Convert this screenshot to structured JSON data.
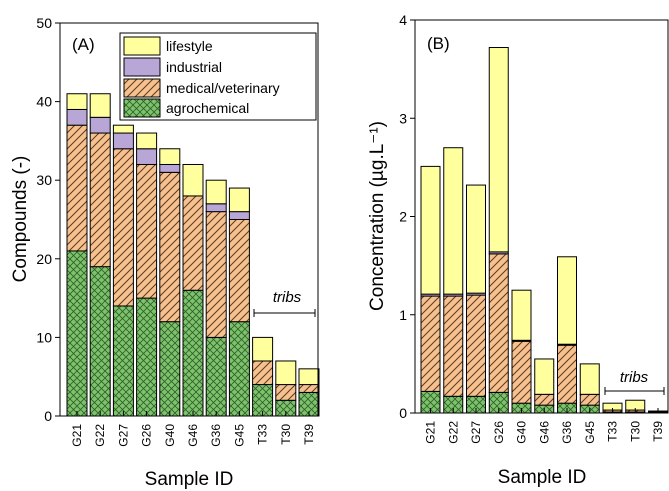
{
  "legend": {
    "items": [
      {
        "label": "lifestyle",
        "key": "lifestyle"
      },
      {
        "label": "industrial",
        "key": "industrial"
      },
      {
        "label": "medical/veterinary",
        "key": "medical"
      },
      {
        "label": "agrochemical",
        "key": "agro"
      }
    ]
  },
  "chart_data": [
    {
      "type": "bar",
      "stacked": true,
      "panel_label": "(A)",
      "xlabel": "Sample ID",
      "ylabel": "Compounds (-)",
      "ylim": [
        0,
        50
      ],
      "yticks": [
        0,
        10,
        20,
        30,
        40,
        50
      ],
      "categories": [
        "G21",
        "G22",
        "G27",
        "G26",
        "G40",
        "G46",
        "G36",
        "G45",
        "T33",
        "T30",
        "T39"
      ],
      "series": [
        {
          "name": "agrochemical",
          "key": "agro",
          "values": [
            21,
            19,
            14,
            15,
            12,
            16,
            10,
            12,
            4,
            2,
            3
          ]
        },
        {
          "name": "medical/veterinary",
          "key": "medical",
          "values": [
            16,
            17,
            20,
            17,
            19,
            12,
            16,
            13,
            3,
            2,
            1
          ]
        },
        {
          "name": "industrial",
          "key": "industrial",
          "values": [
            2,
            2,
            2,
            2,
            1,
            0,
            1,
            1,
            0,
            0,
            0
          ]
        },
        {
          "name": "lifestyle",
          "key": "lifestyle",
          "values": [
            2,
            3,
            1,
            2,
            2,
            4,
            3,
            3,
            3,
            3,
            2
          ]
        }
      ],
      "annotation": {
        "text": "tribs",
        "from_category": "T33",
        "to_category": "T39",
        "y": 14.2
      }
    },
    {
      "type": "bar",
      "stacked": true,
      "panel_label": "(B)",
      "xlabel": "Sample ID",
      "ylabel": "Concentration (µg.L⁻¹)",
      "ylim": [
        0,
        4
      ],
      "yticks": [
        0,
        1,
        2,
        3,
        4
      ],
      "categories": [
        "G21",
        "G22",
        "G27",
        "G26",
        "G40",
        "G46",
        "G36",
        "G45",
        "T33",
        "T30",
        "T39"
      ],
      "series": [
        {
          "name": "agrochemical",
          "key": "agro",
          "values": [
            0.22,
            0.17,
            0.17,
            0.21,
            0.1,
            0.08,
            0.1,
            0.08,
            0.01,
            0.01,
            0.005
          ]
        },
        {
          "name": "medical/veterinary",
          "key": "medical",
          "values": [
            0.97,
            1.02,
            1.03,
            1.41,
            0.63,
            0.11,
            0.59,
            0.11,
            0.02,
            0.02,
            0.01
          ]
        },
        {
          "name": "industrial",
          "key": "industrial",
          "values": [
            0.02,
            0.02,
            0.02,
            0.02,
            0.01,
            0.0,
            0.01,
            0.0,
            0.0,
            0.0,
            0.0
          ]
        },
        {
          "name": "lifestyle",
          "key": "lifestyle",
          "values": [
            1.3,
            1.49,
            1.1,
            2.08,
            0.51,
            0.36,
            0.89,
            0.31,
            0.07,
            0.1,
            0.005
          ]
        }
      ],
      "annotation": {
        "text": "tribs",
        "from_category": "T33",
        "to_category": "T39",
        "y": 0.22
      }
    }
  ],
  "colors": {
    "agro": "#7dc36b",
    "medical": "#f7c08f",
    "industrial": "#b7a6d6",
    "lifestyle": "#ffff9e",
    "edge": "#000000"
  }
}
